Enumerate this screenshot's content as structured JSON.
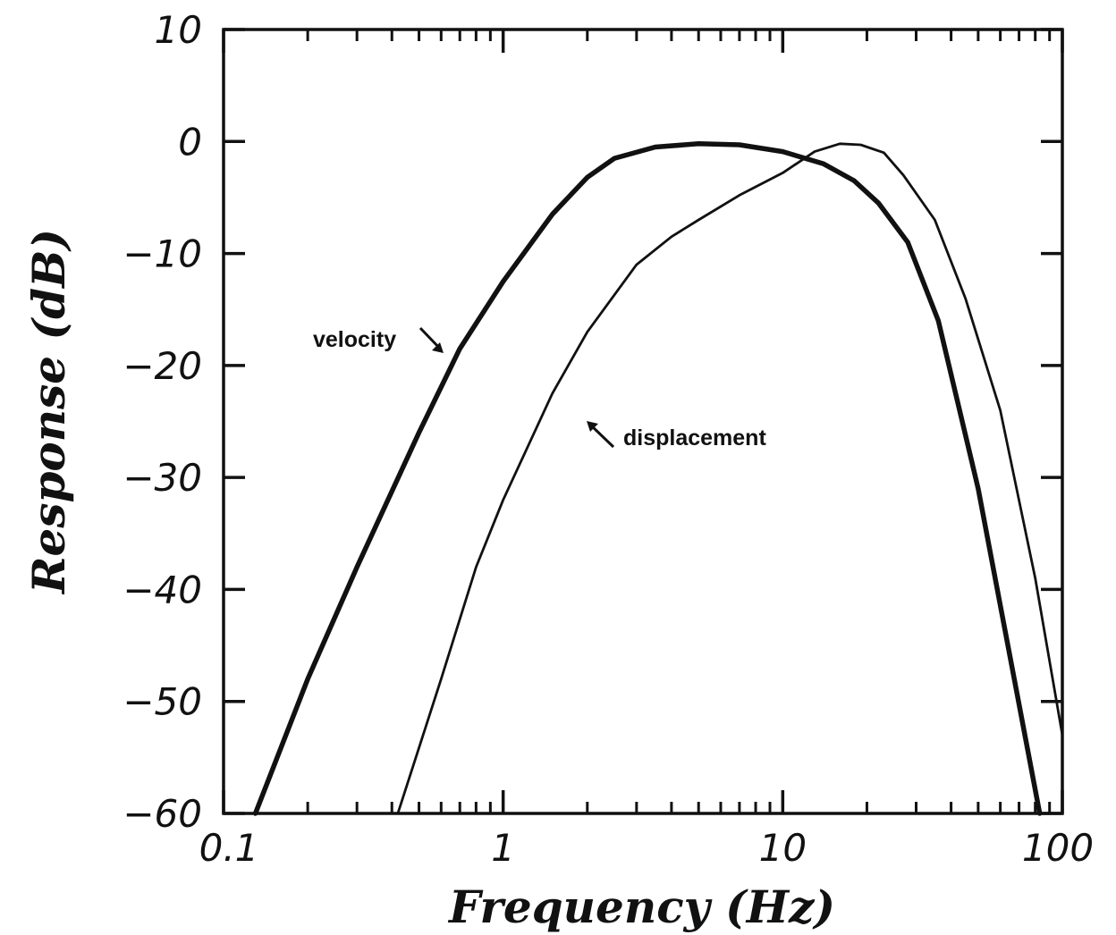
{
  "chart_data": {
    "type": "line",
    "xlabel": "Frequency (Hz)",
    "ylabel": "Response (dB)",
    "xscale": "log",
    "xlim": [
      0.1,
      100
    ],
    "ylim": [
      -60,
      10
    ],
    "grid": false,
    "x_ticks": [
      "0.1",
      "1",
      "10",
      "100"
    ],
    "y_ticks": [
      "10",
      "0",
      "−10",
      "−20",
      "−30",
      "−40",
      "−50",
      "−60"
    ],
    "series": [
      {
        "name": "velocity",
        "line": "thick",
        "x": [
          0.13,
          0.2,
          0.3,
          0.5,
          0.7,
          1.0,
          1.5,
          2.0,
          2.5,
          3.5,
          5.0,
          7.0,
          10.0,
          14.0,
          18.0,
          22.0,
          28.0,
          36.0,
          50.0,
          65.0,
          83.0
        ],
        "y": [
          -60,
          -48,
          -38,
          -26,
          -18.5,
          -12.5,
          -6.5,
          -3.2,
          -1.5,
          -0.5,
          -0.2,
          -0.3,
          -0.9,
          -2.0,
          -3.5,
          -5.5,
          -9.0,
          -16.0,
          -31.0,
          -46.0,
          -60.0
        ]
      },
      {
        "name": "displacement",
        "line": "thin",
        "x": [
          0.42,
          0.6,
          0.8,
          1.0,
          1.5,
          2.0,
          3.0,
          4.0,
          5.0,
          7.0,
          10.0,
          13.0,
          16.0,
          19.0,
          23.0,
          27.0,
          35.0,
          45.0,
          60.0,
          80.0,
          100.0
        ],
        "y": [
          -60,
          -48,
          -38,
          -32,
          -22.5,
          -17,
          -11,
          -8.5,
          -7,
          -4.8,
          -2.8,
          -0.9,
          -0.2,
          -0.3,
          -1.0,
          -3.0,
          -7.0,
          -14.0,
          -24.0,
          -39.0,
          -53.0
        ]
      }
    ],
    "annotations": [
      {
        "text": "velocity",
        "arrow": "points down-right to velocity curve"
      },
      {
        "text": "displacement",
        "arrow": "points up-left to displacement curve"
      }
    ]
  }
}
